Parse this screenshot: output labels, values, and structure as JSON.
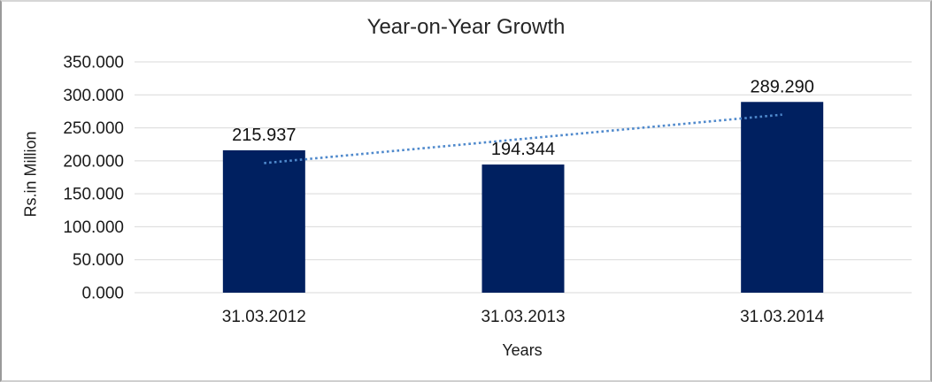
{
  "frame": {
    "border_color": "#a8a8a8",
    "background_color": "#ffffff"
  },
  "chart_data": {
    "type": "bar",
    "title": "Year-on-Year Growth",
    "xlabel": "Years",
    "ylabel": "Rs.in Million",
    "categories": [
      "31.03.2012",
      "31.03.2013",
      "31.03.2014"
    ],
    "values": [
      215.937,
      194.344,
      289.29
    ],
    "data_labels": [
      "215.937",
      "194.344",
      "289.290"
    ],
    "ylim": [
      0,
      350
    ],
    "ytick_step": 50,
    "ytick_labels": [
      "0.000",
      "50.000",
      "100.000",
      "150.000",
      "200.000",
      "250.000",
      "300.000",
      "350.000"
    ],
    "grid": true,
    "legend": "none",
    "bar_color": "#002060",
    "gridline_color": "#d9d9d9",
    "text_color": "#1a1a1a",
    "trendline": {
      "style": "dotted",
      "color": "#4f89cc",
      "start_value": 196.5,
      "end_value": 270.0
    }
  }
}
